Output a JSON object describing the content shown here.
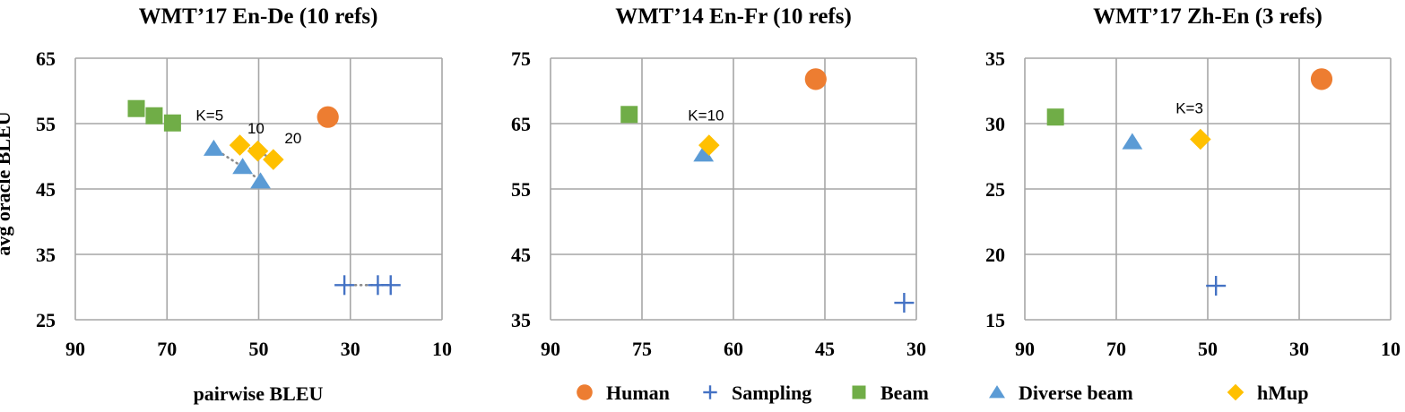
{
  "figure": {
    "shared_xlabel": "pairwise BLEU",
    "shared_ylabel": "avg oracle BLEU"
  },
  "colors": {
    "Human": "#ED7D31",
    "Sampling": "#4472C4",
    "Beam": "#70AD47",
    "Diverse beam": "#5B9BD5",
    "hMup": "#FFC000",
    "grid": "#A6A6A6",
    "connector": "#8C8C8C"
  },
  "legend": {
    "items": [
      {
        "label": "Human",
        "marker": "circle"
      },
      {
        "label": "Sampling",
        "marker": "plus"
      },
      {
        "label": "Beam",
        "marker": "square"
      },
      {
        "label": "Diverse beam",
        "marker": "triangle"
      },
      {
        "label": "hMup",
        "marker": "diamond"
      }
    ]
  },
  "chart_data": [
    {
      "type": "scatter",
      "title": "WMT’17 En-De (10 refs)",
      "xlabel": "pairwise BLEU",
      "ylabel": "avg oracle BLEU",
      "xlim": [
        90,
        10
      ],
      "x_reversed": true,
      "ylim": [
        25,
        65
      ],
      "xticks": [
        90,
        70,
        50,
        30,
        10
      ],
      "yticks": [
        25,
        35,
        45,
        55,
        65
      ],
      "grid": true,
      "series": [
        {
          "name": "Human",
          "marker": "circle",
          "points": [
            [
              34.9,
              56.0
            ]
          ]
        },
        {
          "name": "Sampling",
          "marker": "plus",
          "connected": true,
          "points": [
            [
              31.3,
              30.3
            ],
            [
              24.0,
              30.3
            ],
            [
              21.2,
              30.3
            ]
          ]
        },
        {
          "name": "Beam",
          "marker": "square",
          "points": [
            [
              76.7,
              57.3
            ],
            [
              72.8,
              56.2
            ],
            [
              68.8,
              55.1
            ]
          ]
        },
        {
          "name": "Diverse beam",
          "marker": "triangle",
          "connected": true,
          "points": [
            [
              59.8,
              51.2
            ],
            [
              53.5,
              48.4
            ],
            [
              49.6,
              46.2
            ]
          ]
        },
        {
          "name": "hMup",
          "marker": "diamond",
          "connected": true,
          "points": [
            [
              54.1,
              51.7
            ],
            [
              50.2,
              50.8
            ],
            [
              46.8,
              49.5
            ]
          ]
        }
      ],
      "annotations": [
        {
          "text": "K=5",
          "x": 60.7,
          "y": 55.5
        },
        {
          "text": "10",
          "x": 50.6,
          "y": 53.5
        },
        {
          "text": "20",
          "x": 42.5,
          "y": 52.0
        }
      ]
    },
    {
      "type": "scatter",
      "title": "WMT’14 En-Fr (10 refs)",
      "xlabel": "pairwise BLEU",
      "ylabel": "avg oracle BLEU",
      "xlim": [
        90,
        30
      ],
      "x_reversed": true,
      "ylim": [
        35,
        75
      ],
      "xticks": [
        90,
        75,
        60,
        45,
        30
      ],
      "yticks": [
        35,
        45,
        55,
        65,
        75
      ],
      "grid": true,
      "series": [
        {
          "name": "Human",
          "marker": "circle",
          "points": [
            [
              46.5,
              71.8
            ]
          ]
        },
        {
          "name": "Sampling",
          "marker": "plus",
          "points": [
            [
              32.0,
              37.6
            ]
          ]
        },
        {
          "name": "Beam",
          "marker": "square",
          "points": [
            [
              77.1,
              66.4
            ]
          ]
        },
        {
          "name": "Diverse beam",
          "marker": "triangle",
          "points": [
            [
              64.9,
              60.3
            ]
          ]
        },
        {
          "name": "hMup",
          "marker": "diamond",
          "points": [
            [
              64.0,
              61.7
            ]
          ]
        }
      ],
      "annotations": [
        {
          "text": "K=10",
          "x": 64.5,
          "y": 65.5
        }
      ]
    },
    {
      "type": "scatter",
      "title": "WMT’17 Zh-En (3 refs)",
      "xlabel": "pairwise BLEU",
      "ylabel": "avg oracle BLEU",
      "xlim": [
        90,
        10
      ],
      "x_reversed": true,
      "ylim": [
        15,
        35
      ],
      "xticks": [
        90,
        70,
        50,
        30,
        10
      ],
      "yticks": [
        15,
        20,
        25,
        30,
        35
      ],
      "grid": true,
      "series": [
        {
          "name": "Human",
          "marker": "circle",
          "points": [
            [
              25.1,
              33.4
            ]
          ]
        },
        {
          "name": "Sampling",
          "marker": "plus",
          "points": [
            [
              48.2,
              17.6
            ]
          ]
        },
        {
          "name": "Beam",
          "marker": "square",
          "points": [
            [
              83.3,
              30.5
            ]
          ]
        },
        {
          "name": "Diverse beam",
          "marker": "triangle",
          "points": [
            [
              66.5,
              28.6
            ]
          ]
        },
        {
          "name": "hMup",
          "marker": "diamond",
          "points": [
            [
              51.6,
              28.8
            ]
          ]
        }
      ],
      "annotations": [
        {
          "text": "K=3",
          "x": 54.0,
          "y": 30.8
        }
      ]
    }
  ]
}
